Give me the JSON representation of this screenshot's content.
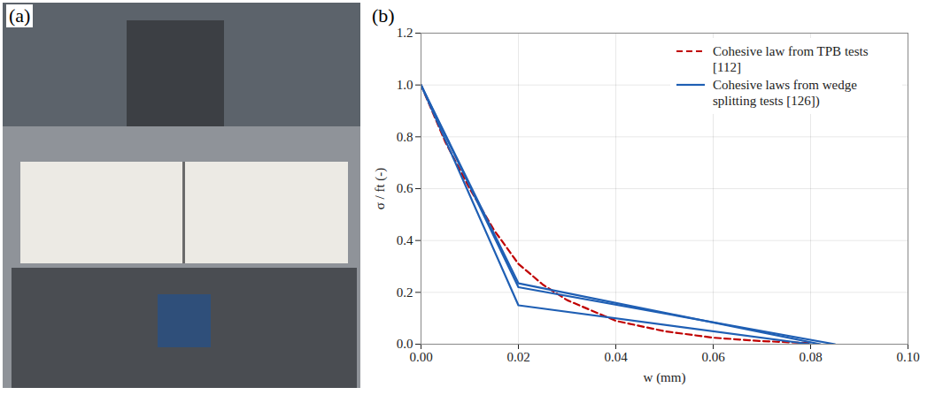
{
  "chart_data": [
    {
      "type": "image",
      "panel_label": "(a)"
    },
    {
      "type": "line",
      "panel_label": "(b)",
      "x_label": "w (mm)",
      "y_label": "σ / ft (-)",
      "xlim": [
        0,
        0.1
      ],
      "xticks": [
        {
          "value": 0,
          "label": "0.00"
        },
        {
          "value": 0.02,
          "label": "0.02"
        },
        {
          "value": 0.04,
          "label": "0.04"
        },
        {
          "value": 0.06,
          "label": "0.06"
        },
        {
          "value": 0.08,
          "label": "0.08"
        },
        {
          "value": 0.1,
          "label": "0.10"
        }
      ],
      "ylim": [
        0,
        1.2
      ],
      "yticks": [
        {
          "value": 0,
          "label": "0.0"
        },
        {
          "value": 0.2,
          "label": "0.2"
        },
        {
          "value": 0.4,
          "label": "0.4"
        },
        {
          "value": 0.6,
          "label": "0.6"
        },
        {
          "value": 0.8,
          "label": "0.8"
        },
        {
          "value": 1,
          "label": "1.0"
        },
        {
          "value": 1.2,
          "label": "1.2"
        }
      ],
      "grid": true,
      "legend": "top-right",
      "series": [
        {
          "name": "Cohesive law from TPB tests [112]",
          "color": "#c00000",
          "line_style": "dashed",
          "x": [
            0,
            0.005,
            0.01,
            0.015,
            0.02,
            0.025,
            0.03,
            0.04,
            0.05,
            0.06,
            0.07,
            0.08
          ],
          "values": [
            1,
            0.78,
            0.6,
            0.44,
            0.31,
            0.23,
            0.17,
            0.09,
            0.05,
            0.025,
            0.012,
            0.004
          ]
        },
        {
          "name": "Cohesive laws from wedge splitting tests [126])",
          "color": "#1f5fb4",
          "line_style": "solid",
          "x": [
            0,
            0.02,
            0.085
          ],
          "values": [
            1,
            0.22,
            0
          ]
        },
        {
          "name": "Cohesive laws from wedge splitting tests [126])",
          "color": "#1f5fb4",
          "line_style": "solid",
          "x": [
            0,
            0.02,
            0.08
          ],
          "values": [
            1,
            0.15,
            0
          ]
        },
        {
          "name": "Cohesive laws from wedge splitting tests [126])",
          "color": "#1f5fb4",
          "line_style": "solid",
          "x": [
            0,
            0.02,
            0.082
          ],
          "values": [
            1,
            0.235,
            0
          ]
        }
      ]
    }
  ]
}
